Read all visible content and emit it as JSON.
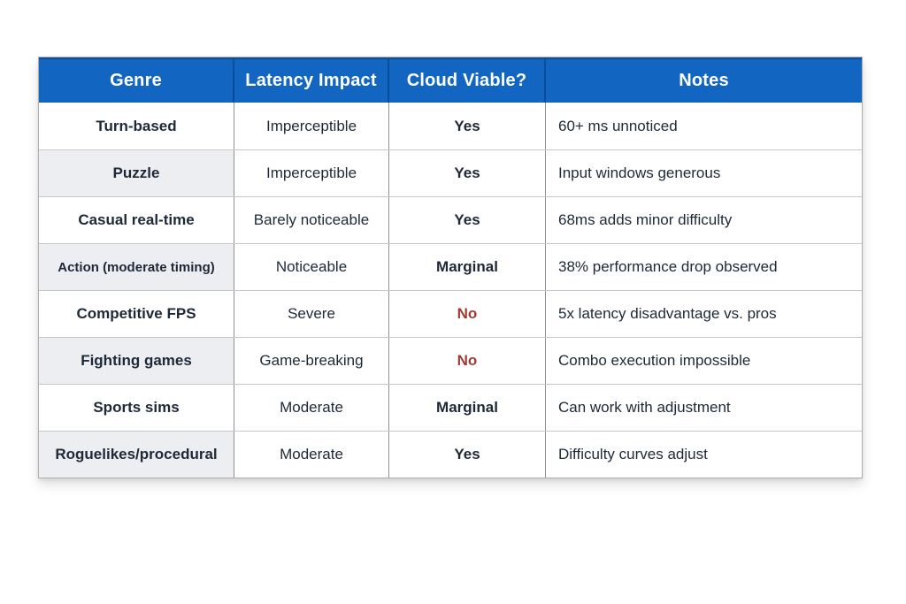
{
  "table": {
    "headers": [
      "Genre",
      "Latency Impact",
      "Cloud Viable?",
      "Notes"
    ],
    "rows": [
      {
        "genre": "Turn-based",
        "latency": "Imperceptible",
        "viable": "Yes",
        "notes": "60+ ms unnoticed"
      },
      {
        "genre": "Puzzle",
        "latency": "Imperceptible",
        "viable": "Yes",
        "notes": "Input windows generous"
      },
      {
        "genre": "Casual real-time",
        "latency": "Barely noticeable",
        "viable": "Yes",
        "notes": "68ms adds minor difficulty"
      },
      {
        "genre": "Action (moderate timing)",
        "latency": "Noticeable",
        "viable": "Marginal",
        "notes": "38% performance drop observed"
      },
      {
        "genre": "Competitive FPS",
        "latency": "Severe",
        "viable": "No",
        "notes": "5x latency disadvantage vs. pros"
      },
      {
        "genre": "Fighting games",
        "latency": "Game-breaking",
        "viable": "No",
        "notes": "Combo execution impossible"
      },
      {
        "genre": "Sports sims",
        "latency": "Moderate",
        "viable": "Marginal",
        "notes": "Can work with adjustment"
      },
      {
        "genre": "Roguelikes/procedural",
        "latency": "Moderate",
        "viable": "Yes",
        "notes": "Difficulty curves adjust"
      }
    ],
    "colors": {
      "header_bg": "#1266c2",
      "header_divider": "#0c4d9a",
      "no_text": "#a23a33",
      "dark_text": "#1d2937"
    }
  }
}
